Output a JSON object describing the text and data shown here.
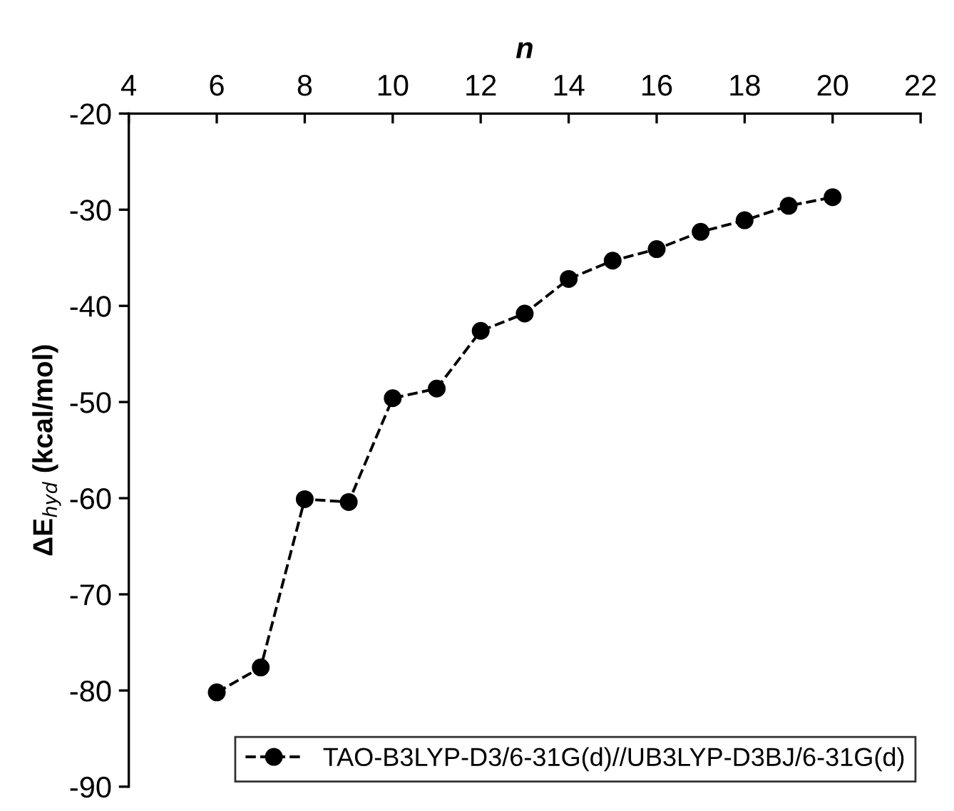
{
  "chart_data": {
    "type": "line",
    "xlabel": "n",
    "ylabel": "ΔE$_{hyd}$ (kcal/mol)",
    "x": [
      6,
      7,
      8,
      9,
      10,
      11,
      12,
      13,
      14,
      15,
      16,
      17,
      18,
      19,
      20
    ],
    "series": [
      {
        "name": "TAO-B3LYP-D3/6-31G(d)//UB3LYP-D3BJ/6-31G(d)",
        "color": "#000000",
        "values": [
          -80.2,
          -77.6,
          -60.1,
          -60.4,
          -49.6,
          -48.6,
          -42.6,
          -40.8,
          -37.2,
          -35.3,
          -34.1,
          -32.3,
          -31.1,
          -29.6,
          -28.7
        ]
      }
    ],
    "xlim": [
      4,
      22
    ],
    "xticks": [
      4,
      6,
      8,
      10,
      12,
      14,
      16,
      18,
      20,
      22
    ],
    "ylim": [
      -90,
      -20
    ],
    "yticks": [
      -90,
      -80,
      -70,
      -60,
      -50,
      -40,
      -30,
      -20
    ],
    "marker": "circle",
    "line_style": "dashed",
    "grid": false,
    "legend": "bottom right"
  }
}
